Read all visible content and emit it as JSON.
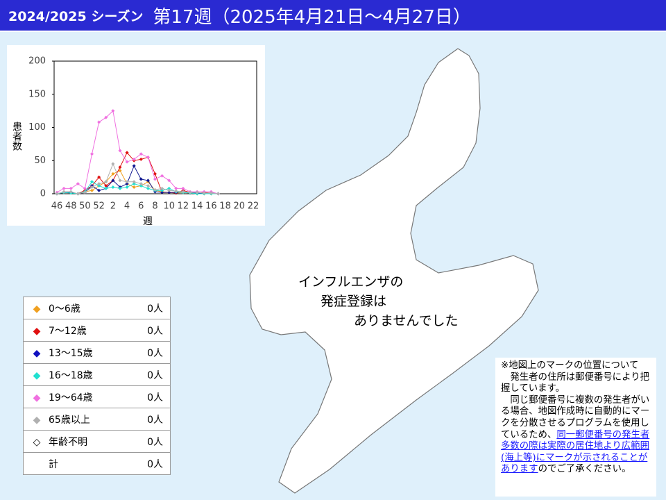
{
  "header": {
    "season": "2024/2025 シーズン",
    "week": "第17週（2025年4月21日～4月27日）"
  },
  "chart_data": {
    "type": "line",
    "y_label": "患者数",
    "x_label": "週",
    "categories": [
      46,
      null,
      48,
      null,
      50,
      null,
      52,
      null,
      2,
      null,
      4,
      null,
      6,
      null,
      8,
      null,
      10,
      null,
      12,
      null,
      14,
      null,
      16,
      null,
      18,
      null,
      20,
      null,
      22
    ],
    "ylim": [
      0,
      200
    ],
    "yticks": [
      0,
      50,
      100,
      150,
      200
    ],
    "series": [
      {
        "name": "0～6歳",
        "color": "#f0a020",
        "values": [
          0,
          2,
          2,
          0,
          3,
          5,
          12,
          18,
          30,
          35,
          15,
          10,
          12,
          18,
          5,
          3,
          2,
          1,
          2,
          1,
          0,
          0,
          0,
          0,
          null,
          null,
          null,
          null,
          null
        ]
      },
      {
        "name": "7～12歳",
        "color": "#e01010",
        "values": [
          0,
          2,
          2,
          0,
          5,
          12,
          25,
          12,
          20,
          40,
          62,
          50,
          52,
          55,
          30,
          2,
          2,
          1,
          5,
          2,
          1,
          2,
          1,
          0,
          null,
          null,
          null,
          null,
          null
        ]
      },
      {
        "name": "13～15歳",
        "color": "#101890",
        "values": [
          0,
          2,
          2,
          0,
          2,
          12,
          5,
          8,
          20,
          10,
          15,
          42,
          22,
          20,
          3,
          2,
          2,
          2,
          3,
          1,
          1,
          1,
          1,
          0,
          null,
          null,
          null,
          null,
          null
        ]
      },
      {
        "name": "16～18歳",
        "color": "#20e0d0",
        "values": [
          0,
          2,
          1,
          0,
          3,
          18,
          12,
          8,
          10,
          8,
          10,
          15,
          12,
          8,
          5,
          5,
          8,
          3,
          2,
          1,
          0,
          0,
          0,
          0,
          null,
          null,
          null,
          null,
          null
        ]
      },
      {
        "name": "19～64歳",
        "color": "#f070e0",
        "values": [
          2,
          8,
          8,
          15,
          8,
          60,
          108,
          115,
          125,
          65,
          48,
          52,
          60,
          55,
          22,
          27,
          20,
          8,
          8,
          3,
          3,
          3,
          3,
          0,
          null,
          null,
          null,
          null,
          null
        ]
      },
      {
        "name": "65歳以上",
        "color": "#b0b0b0",
        "values": [
          0,
          3,
          3,
          0,
          2,
          10,
          15,
          18,
          45,
          20,
          18,
          18,
          15,
          12,
          6,
          8,
          5,
          4,
          3,
          2,
          2,
          1,
          1,
          0,
          null,
          null,
          null,
          null,
          null
        ]
      }
    ]
  },
  "map": {
    "message_lines": [
      "インフルエンザの",
      "発症登録は",
      "ありませんでした"
    ]
  },
  "legend": {
    "rows": [
      {
        "label": "0～6歳",
        "color": "#f0a020",
        "count": "0人"
      },
      {
        "label": "7～12歳",
        "color": "#e01010",
        "count": "0人"
      },
      {
        "label": "13～15歳",
        "color": "#1010c0",
        "count": "0人"
      },
      {
        "label": "16～18歳",
        "color": "#20e0d0",
        "count": "0人"
      },
      {
        "label": "19～64歳",
        "color": "#f070e0",
        "count": "0人"
      },
      {
        "label": "65歳以上",
        "color": "#b0b0b0",
        "count": "0人"
      },
      {
        "label": "年齢不明",
        "count": "0人"
      },
      {
        "label": "計",
        "count": "0人"
      }
    ]
  },
  "note": {
    "heading": "※地図上のマークの位置について",
    "p1": "　発生者の住所は郵便番号により把握しています。",
    "p2_before": "　同じ郵便番号に複数の発生者がいる場合、地図作成時に自動的にマークを分散させるプログラムを使用しているため、",
    "p2_link": "同一郵便番号の発生者多数の際は実際の居住地より広範囲(海上等)にマークが示されることがあります",
    "p2_after": "のでご了承ください。"
  }
}
